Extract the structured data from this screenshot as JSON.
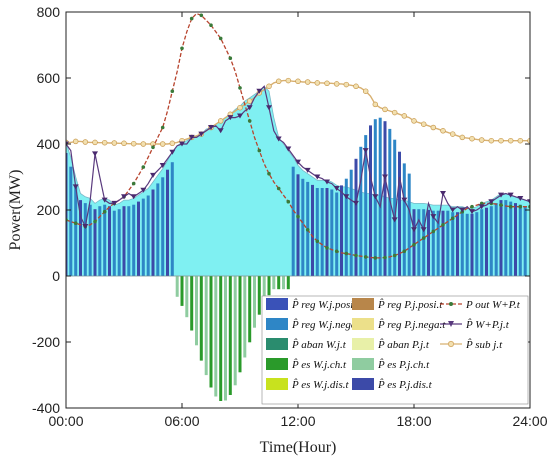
{
  "chart_data": {
    "type": "bar",
    "xlabel": "Time(Hour)",
    "ylabel": "Power(MW)",
    "ylim": [
      -400,
      800
    ],
    "xlim": [
      0,
      24
    ],
    "x_ticks": [
      {
        "v": 0,
        "label": "00:00"
      },
      {
        "v": 6,
        "label": "06:00"
      },
      {
        "v": 12,
        "label": "12:00"
      },
      {
        "v": 18,
        "label": "18:00"
      },
      {
        "v": 24,
        "label": "24:00"
      }
    ],
    "y_ticks": [
      {
        "v": -400,
        "label": "-400"
      },
      {
        "v": -200,
        "label": "-200"
      },
      {
        "v": 0,
        "label": "0"
      },
      {
        "v": 200,
        "label": "200"
      },
      {
        "v": 400,
        "label": "400"
      },
      {
        "v": 600,
        "label": "600"
      },
      {
        "v": 800,
        "label": "800"
      }
    ],
    "legend_position": "bottom-right",
    "legend": [
      {
        "id": "w_posi",
        "label": "P̂ reg W.j.posi.t",
        "color": "#3a52b8",
        "kind": "bar"
      },
      {
        "id": "w_nega",
        "label": "P̂ reg W.j.nega.t",
        "color": "#2e86c6",
        "kind": "bar"
      },
      {
        "id": "w_aban",
        "label": "P̂ aban W.j.t",
        "color": "#2a8c6e",
        "kind": "bar"
      },
      {
        "id": "w_ch",
        "label": "P̂ es W.j.ch.t",
        "color": "#2a9a2a",
        "kind": "bar"
      },
      {
        "id": "w_dis",
        "label": "P̂ es W.j.dis.t",
        "color": "#c8e21e",
        "kind": "bar"
      },
      {
        "id": "p_posi",
        "label": "P̂ reg P.j.posi.t",
        "color": "#b8864a",
        "kind": "bar"
      },
      {
        "id": "p_nega",
        "label": "P̂ reg P.j.nega.t",
        "color": "#ece08a",
        "kind": "bar"
      },
      {
        "id": "p_aban",
        "label": "P̂ aban P.j.t",
        "color": "#e8f0a8",
        "kind": "bar"
      },
      {
        "id": "p_ch",
        "label": "P̂ es P.j.ch.t",
        "color": "#8fcca0",
        "kind": "bar"
      },
      {
        "id": "p_dis",
        "label": "P̂ es P.j.dis.t",
        "color": "#3c4aa8",
        "kind": "bar"
      },
      {
        "id": "out",
        "label": "P out W+P.t",
        "color": "#b8442e",
        "kind": "line-dash"
      },
      {
        "id": "sch",
        "label": "P̂ W+P.j.t",
        "color": "#5a3a7e",
        "kind": "line-tri"
      },
      {
        "id": "sub",
        "label": "P̂ sub j.t",
        "color": "#d8b070",
        "kind": "line-circle"
      }
    ],
    "colors": {
      "area": "#7ff0f2",
      "area_edge": "#7ab8c8",
      "bar_wind": "#2e86c6",
      "bar_pv": "#3c4aa8",
      "bar_ch_wind": "#2a9a2a",
      "bar_ch_pv": "#8fcca0"
    },
    "x": [
      0.0,
      0.25,
      0.5,
      0.75,
      1.0,
      1.25,
      1.5,
      1.75,
      2.0,
      2.25,
      2.5,
      2.75,
      3.0,
      3.25,
      3.5,
      3.75,
      4.0,
      4.25,
      4.5,
      4.75,
      5.0,
      5.25,
      5.5,
      5.75,
      6.0,
      6.25,
      6.5,
      6.75,
      7.0,
      7.25,
      7.5,
      7.75,
      8.0,
      8.25,
      8.5,
      8.75,
      9.0,
      9.25,
      9.5,
      9.75,
      10.0,
      10.25,
      10.5,
      10.75,
      11.0,
      11.25,
      11.5,
      11.75,
      12.0,
      12.25,
      12.5,
      12.75,
      13.0,
      13.25,
      13.5,
      13.75,
      14.0,
      14.25,
      14.5,
      14.75,
      15.0,
      15.25,
      15.5,
      15.75,
      16.0,
      16.25,
      16.5,
      16.75,
      17.0,
      17.25,
      17.5,
      17.75,
      18.0,
      18.25,
      18.5,
      18.75,
      19.0,
      19.25,
      19.5,
      19.75,
      20.0,
      20.25,
      20.5,
      20.75,
      21.0,
      21.25,
      21.5,
      21.75,
      22.0,
      22.25,
      22.5,
      22.75,
      23.0,
      23.25,
      23.5,
      23.75,
      24.0
    ],
    "series": [
      {
        "id": "area",
        "values": [
          405,
          360,
          300,
          250,
          240,
          235,
          220,
          230,
          235,
          230,
          215,
          220,
          230,
          230,
          235,
          245,
          255,
          265,
          285,
          305,
          325,
          350,
          375,
          395,
          405,
          410,
          420,
          425,
          430,
          445,
          450,
          460,
          470,
          480,
          490,
          505,
          515,
          530,
          540,
          550,
          560,
          575,
          560,
          480,
          420,
          400,
          380,
          360,
          335,
          320,
          310,
          300,
          290,
          290,
          290,
          285,
          275,
          270,
          270,
          265,
          260,
          255,
          250,
          250,
          245,
          245,
          240,
          235,
          235,
          230,
          230,
          225,
          220,
          220,
          220,
          218,
          215,
          215,
          215,
          215,
          210,
          210,
          210,
          205,
          205,
          210,
          220,
          225,
          230,
          240,
          250,
          250,
          245,
          240,
          235,
          230,
          225
        ]
      },
      {
        "id": "out",
        "values": [
          170,
          165,
          160,
          155,
          150,
          155,
          165,
          180,
          195,
          210,
          220,
          230,
          240,
          260,
          280,
          305,
          330,
          360,
          390,
          420,
          450,
          500,
          560,
          620,
          690,
          740,
          780,
          795,
          790,
          775,
          760,
          740,
          720,
          690,
          660,
          620,
          570,
          520,
          470,
          420,
          380,
          340,
          310,
          285,
          265,
          245,
          225,
          200,
          180,
          160,
          140,
          120,
          105,
          95,
          85,
          80,
          75,
          70,
          68,
          65,
          62,
          60,
          58,
          56,
          55,
          55,
          56,
          58,
          62,
          68,
          75,
          85,
          95,
          105,
          115,
          125,
          135,
          145,
          155,
          165,
          175,
          185,
          195,
          205,
          210,
          215,
          220,
          220,
          220,
          218,
          215,
          212,
          210,
          210,
          210,
          210,
          210
        ]
      },
      {
        "id": "sch",
        "values": [
          400,
          380,
          270,
          180,
          150,
          230,
          370,
          300,
          230,
          220,
          220,
          230,
          240,
          250,
          240,
          250,
          260,
          280,
          305,
          320,
          335,
          355,
          375,
          395,
          400,
          400,
          420,
          420,
          430,
          440,
          450,
          455,
          440,
          470,
          480,
          480,
          485,
          500,
          510,
          540,
          560,
          575,
          510,
          440,
          415,
          405,
          385,
          365,
          345,
          330,
          320,
          310,
          300,
          295,
          285,
          280,
          265,
          255,
          240,
          230,
          220,
          290,
          380,
          300,
          240,
          210,
          300,
          230,
          170,
          300,
          230,
          200,
          140,
          170,
          140,
          220,
          180,
          160,
          250,
          220,
          200,
          210,
          200,
          210,
          195,
          200,
          210,
          215,
          225,
          235,
          245,
          250,
          245,
          240,
          235,
          230,
          225
        ]
      },
      {
        "id": "sub",
        "values": [
          405,
          405,
          408,
          408,
          406,
          405,
          405,
          404,
          404,
          403,
          403,
          402,
          402,
          401,
          401,
          400,
          400,
          400,
          400,
          400,
          400,
          400,
          402,
          405,
          410,
          415,
          420,
          425,
          430,
          440,
          450,
          460,
          470,
          480,
          490,
          500,
          510,
          520,
          530,
          540,
          555,
          565,
          575,
          585,
          590,
          592,
          592,
          590,
          590,
          588,
          588,
          586,
          585,
          585,
          584,
          584,
          582,
          582,
          580,
          578,
          575,
          570,
          560,
          545,
          520,
          510,
          505,
          500,
          495,
          490,
          485,
          480,
          470,
          465,
          460,
          455,
          450,
          445,
          440,
          435,
          430,
          425,
          420,
          418,
          416,
          414,
          412,
          411,
          410,
          410,
          410,
          410,
          410,
          410,
          410,
          410,
          410
        ]
      }
    ]
  }
}
